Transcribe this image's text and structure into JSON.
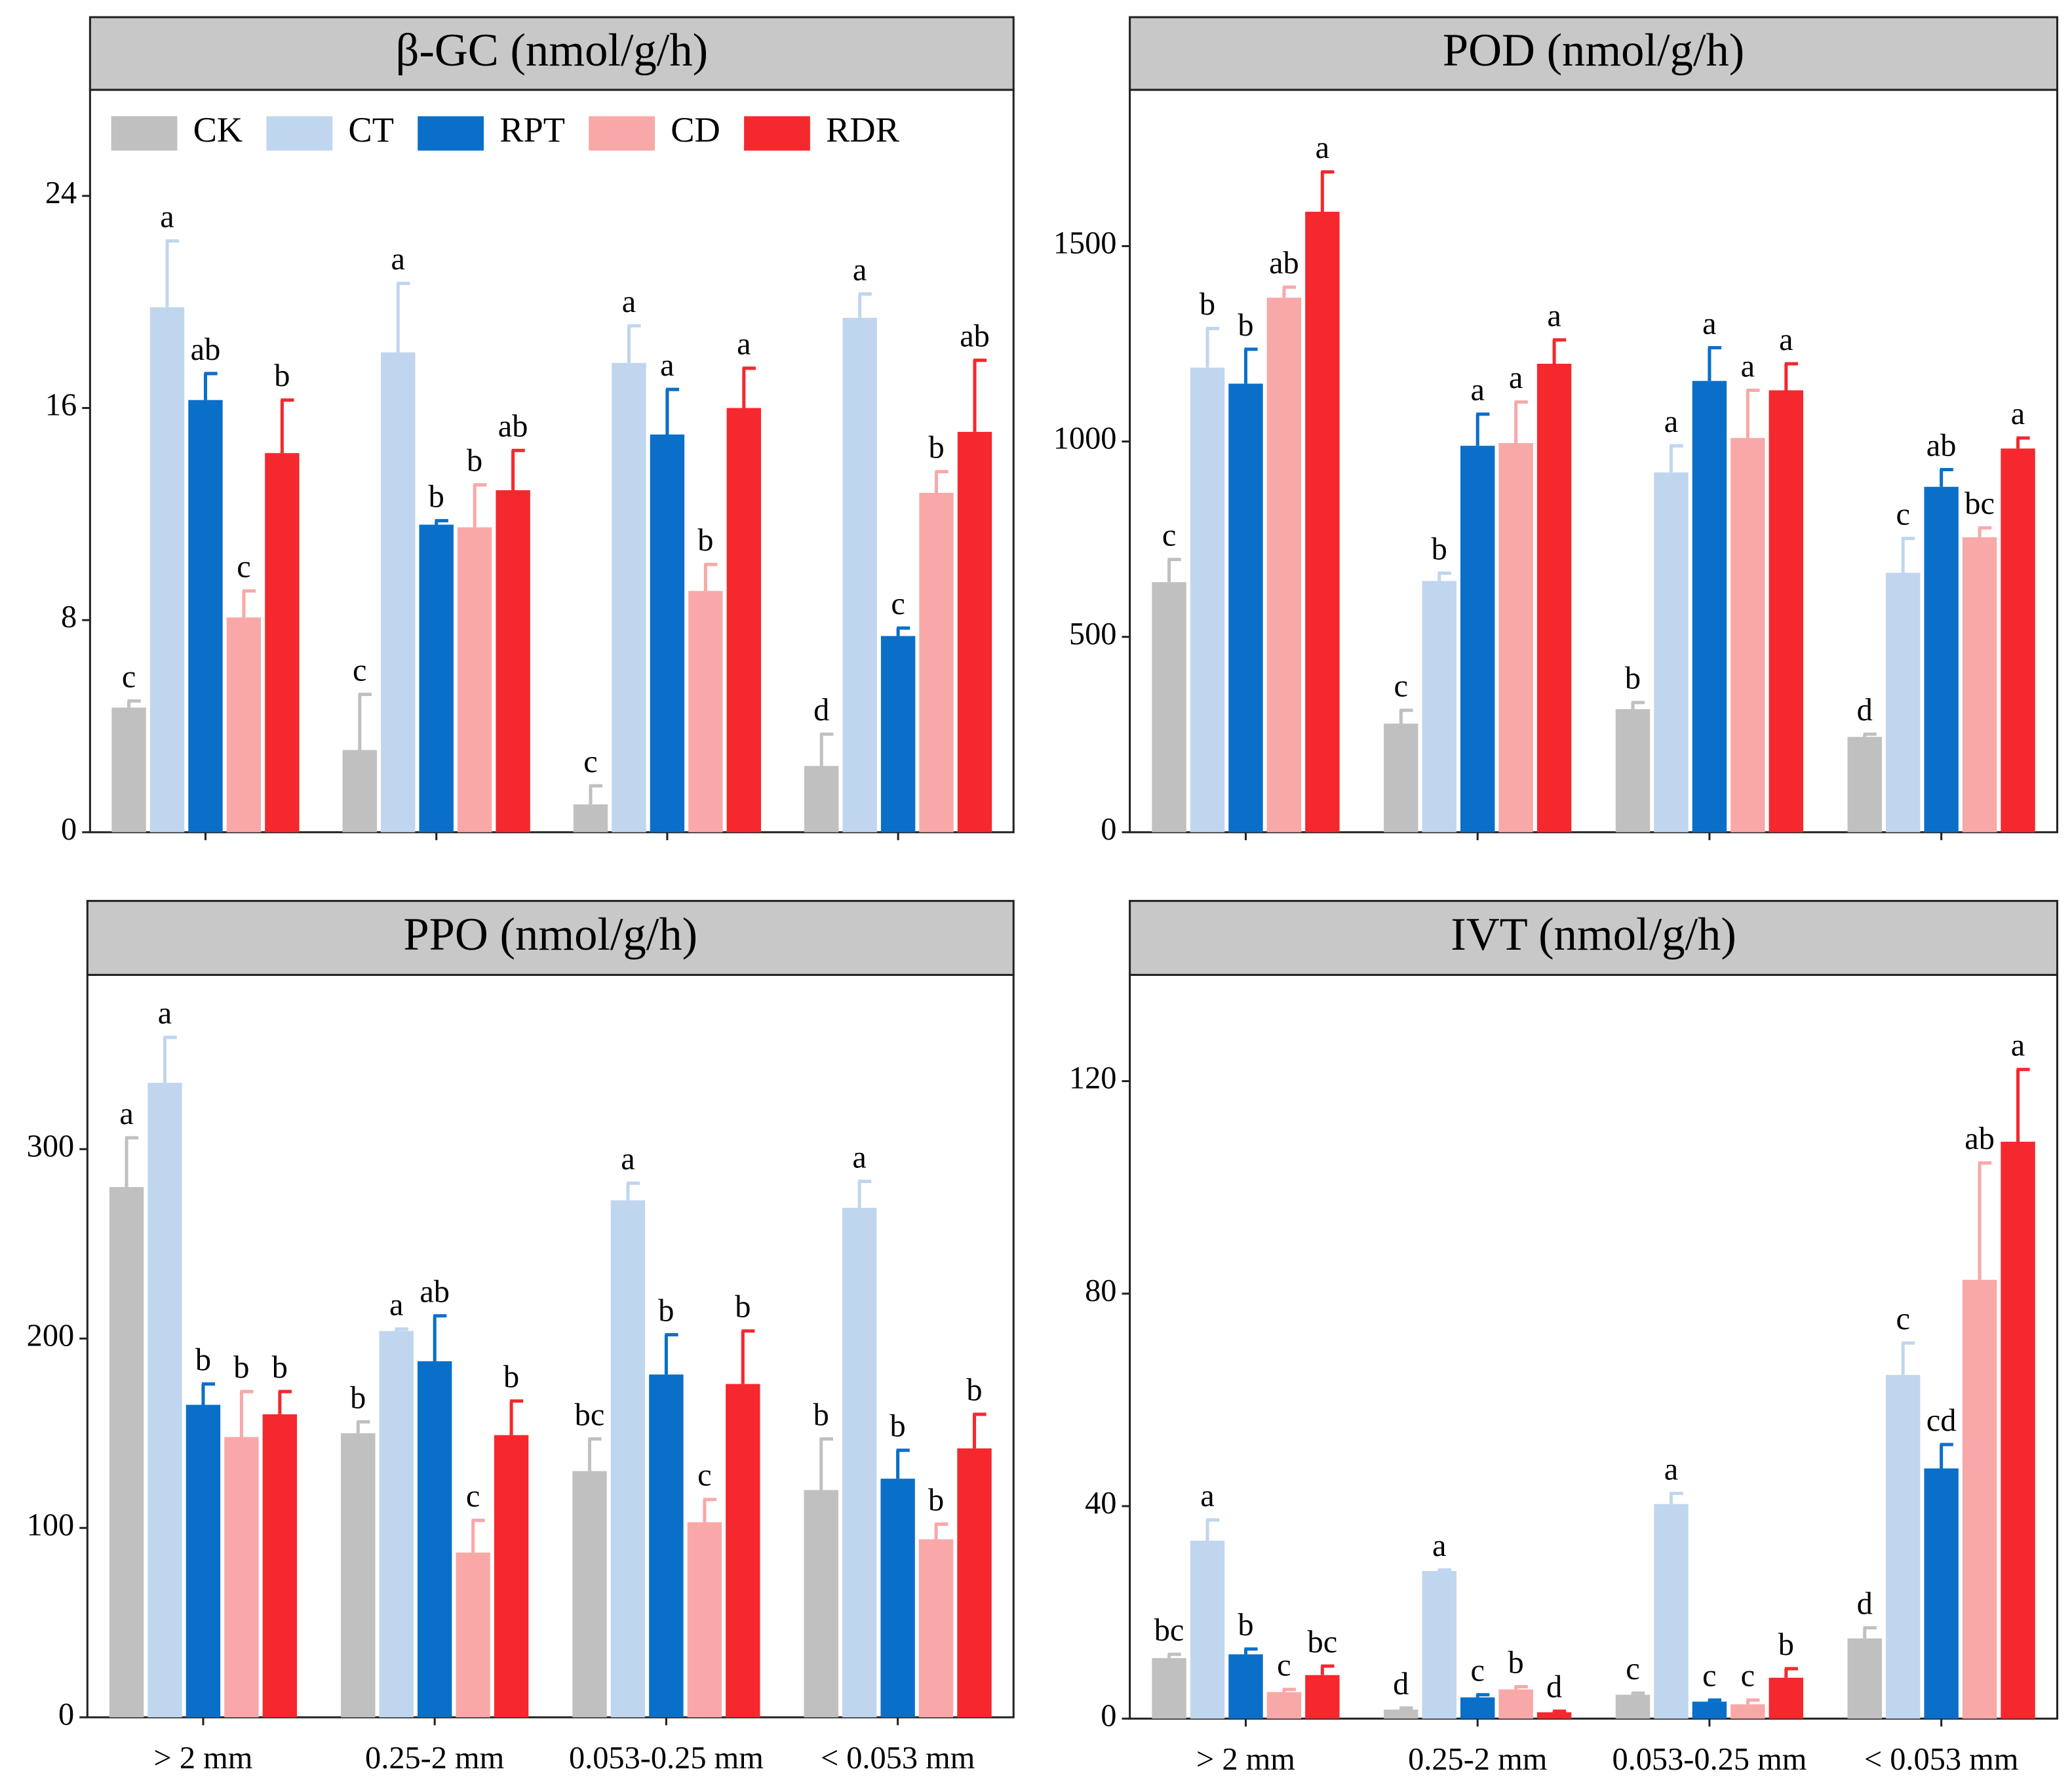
{
  "chart_data": [
    {
      "type": "bar",
      "title": "β-GC (nmol/g/h)",
      "ylim": [
        0,
        28
      ],
      "yticks": [
        0,
        8,
        16,
        24
      ],
      "legend": "top-left",
      "series": [
        {
          "name": "CK",
          "color": "#c0c0c0",
          "values": [
            4.7,
            3.1,
            1.05,
            2.5
          ],
          "errors": [
            0.25,
            2.1,
            0.7,
            1.2
          ],
          "letters": [
            "c",
            "c",
            "c",
            "d"
          ]
        },
        {
          "name": "CT",
          "color": "#c0d6ee",
          "values": [
            19.8,
            18.1,
            17.7,
            19.4
          ],
          "errors": [
            2.5,
            2.6,
            1.4,
            0.9
          ],
          "letters": [
            "a",
            "a",
            "a",
            "a"
          ]
        },
        {
          "name": "RPT",
          "color": "#0a6fc8",
          "values": [
            16.3,
            11.6,
            15.0,
            7.4
          ],
          "errors": [
            1.0,
            0.15,
            1.7,
            0.3
          ],
          "letters": [
            "ab",
            "b",
            "a",
            "c"
          ]
        },
        {
          "name": "CD",
          "color": "#f9a8a8",
          "values": [
            8.1,
            11.5,
            9.1,
            12.8
          ],
          "errors": [
            1.0,
            1.6,
            1.0,
            0.8
          ],
          "letters": [
            "c",
            "b",
            "b",
            "b"
          ]
        },
        {
          "name": "RDR",
          "color": "#f5282d",
          "values": [
            14.3,
            12.9,
            16.0,
            15.1
          ],
          "errors": [
            2.0,
            1.5,
            1.5,
            2.7
          ],
          "letters": [
            "b",
            "ab",
            "a",
            "ab"
          ]
        }
      ]
    },
    {
      "type": "bar",
      "title": "POD (nmol/g/h)",
      "ylim": [
        0,
        1900
      ],
      "yticks": [
        0,
        500,
        1000,
        1500
      ],
      "series": [
        {
          "color": "#c0c0c0",
          "values": [
            640,
            278,
            315,
            244
          ],
          "errors": [
            58,
            34,
            17,
            7
          ],
          "letters": [
            "c",
            "c",
            "b",
            "d"
          ]
        },
        {
          "color": "#c0d6ee",
          "values": [
            1189,
            643,
            921,
            664
          ],
          "errors": [
            100,
            20,
            68,
            88
          ],
          "letters": [
            "b",
            "b",
            "a",
            "c"
          ]
        },
        {
          "color": "#0a6fc8",
          "values": [
            1148,
            989,
            1155,
            884
          ],
          "errors": [
            88,
            81,
            85,
            44
          ],
          "letters": [
            "b",
            "a",
            "a",
            "ab"
          ]
        },
        {
          "color": "#f9a8a8",
          "values": [
            1368,
            996,
            1009,
            755
          ],
          "errors": [
            27,
            105,
            122,
            24
          ],
          "letters": [
            "ab",
            "a",
            "a",
            "bc"
          ]
        },
        {
          "color": "#f5282d",
          "values": [
            1588,
            1199,
            1131,
            982
          ],
          "errors": [
            102,
            61,
            68,
            27
          ],
          "letters": [
            "a",
            "a",
            "a",
            "a"
          ]
        }
      ]
    },
    {
      "type": "bar",
      "title": "PPO (nmol/g/h)",
      "ylim": [
        0,
        392
      ],
      "yticks": [
        0,
        100,
        200,
        300
      ],
      "categories": [
        "> 2 mm",
        "0.25-2 mm",
        "0.053-0.25 mm",
        "< 0.053 mm"
      ],
      "series": [
        {
          "color": "#c0c0c0",
          "values": [
            280,
            150,
            130,
            120
          ],
          "errors": [
            26,
            6,
            17,
            27
          ],
          "letters": [
            "a",
            "b",
            "bc",
            "b"
          ]
        },
        {
          "color": "#c0d6ee",
          "values": [
            335,
            204,
            273,
            269
          ],
          "errors": [
            24,
            1,
            9,
            14
          ],
          "letters": [
            "a",
            "a",
            "a",
            "a"
          ]
        },
        {
          "color": "#0a6fc8",
          "values": [
            165,
            188,
            181,
            126
          ],
          "errors": [
            11,
            24,
            21,
            15
          ],
          "letters": [
            "b",
            "ab",
            "b",
            "b"
          ]
        },
        {
          "color": "#f9a8a8",
          "values": [
            148,
            87,
            103,
            94
          ],
          "errors": [
            24,
            17,
            12,
            8
          ],
          "letters": [
            "b",
            "c",
            "c",
            "b"
          ]
        },
        {
          "color": "#f5282d",
          "values": [
            160,
            149,
            176,
            142
          ],
          "errors": [
            12,
            18,
            28,
            18
          ],
          "letters": [
            "b",
            "b",
            "b",
            "b"
          ]
        }
      ]
    },
    {
      "type": "bar",
      "title": "IVT (nmol/g/h)",
      "ylim": [
        0,
        140
      ],
      "yticks": [
        0,
        40,
        80,
        120
      ],
      "categories": [
        "> 2 mm",
        "0.25-2 mm",
        "0.053-0.25 mm",
        "< 0.053 mm"
      ],
      "series": [
        {
          "color": "#c0c0c0",
          "values": [
            11.4,
            1.7,
            4.5,
            15.1
          ],
          "errors": [
            0.7,
            0.3,
            0.3,
            2.0
          ],
          "letters": [
            "bc",
            "d",
            "c",
            "d"
          ]
        },
        {
          "color": "#c0d6ee",
          "values": [
            33.5,
            27.8,
            40.4,
            64.7
          ],
          "errors": [
            3.9,
            0.2,
            2.0,
            6.0
          ],
          "letters": [
            "a",
            "a",
            "a",
            "c"
          ]
        },
        {
          "color": "#0a6fc8",
          "values": [
            12.1,
            4.0,
            3.2,
            47.1
          ],
          "errors": [
            1.0,
            0.5,
            0.3,
            4.5
          ],
          "letters": [
            "b",
            "c",
            "c",
            "cd"
          ]
        },
        {
          "color": "#f9a8a8",
          "values": [
            5.0,
            5.5,
            2.7,
            82.6
          ],
          "errors": [
            0.5,
            0.5,
            0.8,
            22
          ],
          "letters": [
            "c",
            "b",
            "c",
            "ab"
          ]
        },
        {
          "color": "#f5282d",
          "values": [
            8.2,
            1.2,
            7.7,
            108.6
          ],
          "errors": [
            1.7,
            0.2,
            1.7,
            13.6
          ],
          "letters": [
            "bc",
            "d",
            "b",
            "a"
          ]
        }
      ]
    }
  ]
}
